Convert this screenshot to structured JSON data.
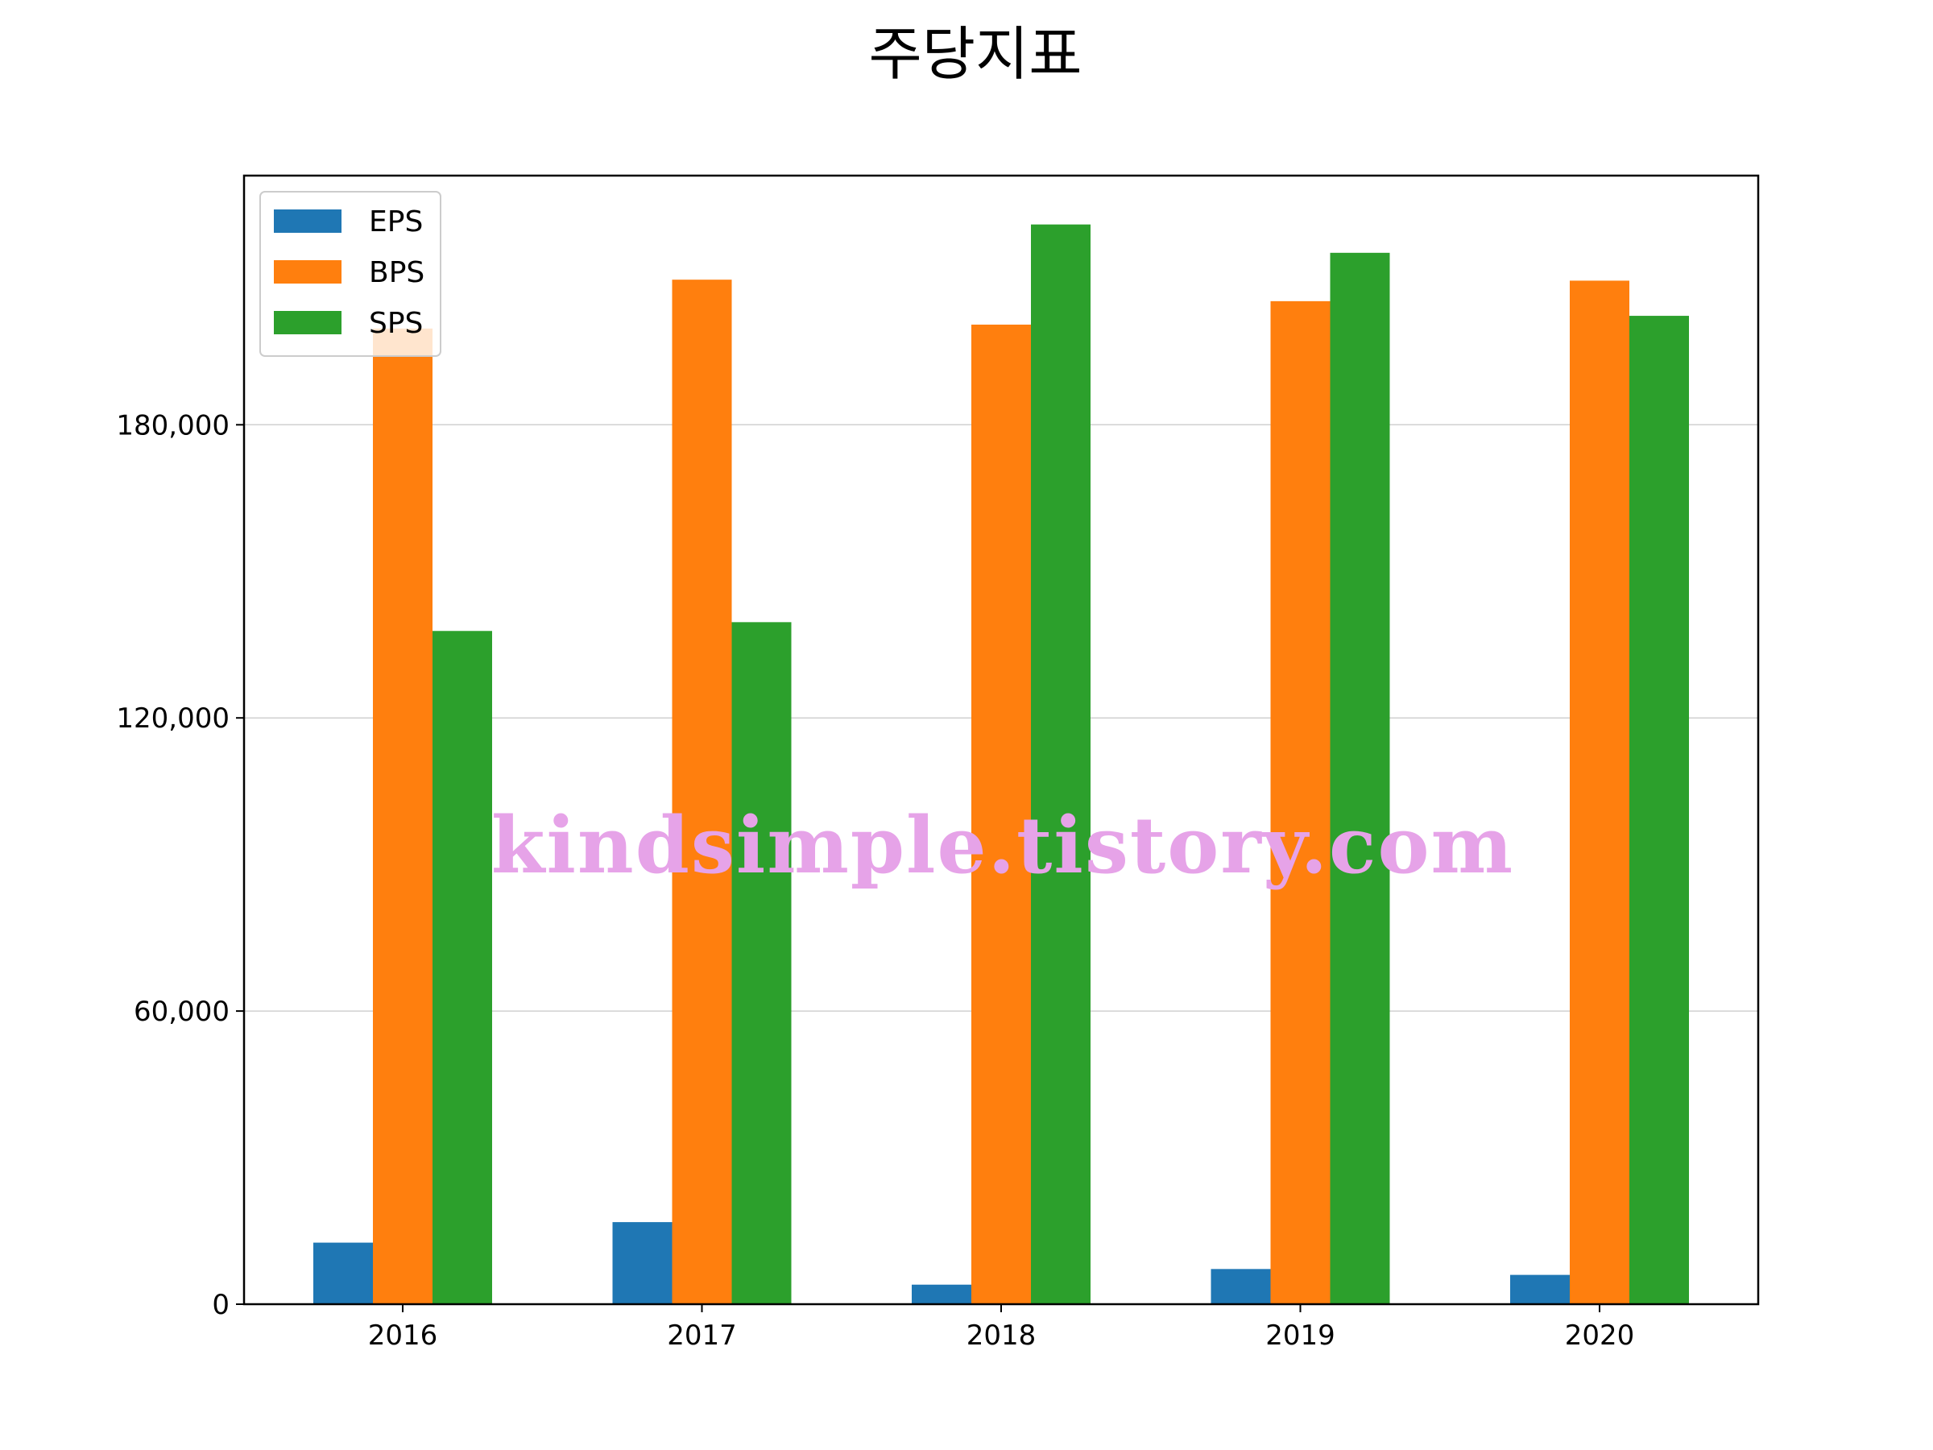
{
  "chart_data": {
    "type": "bar",
    "title": "주당지표",
    "categories": [
      "2016",
      "2017",
      "2018",
      "2019",
      "2020"
    ],
    "series": [
      {
        "name": "EPS",
        "color": "#1f77b4",
        "values": [
          12600,
          16800,
          4000,
          7200,
          6000
        ]
      },
      {
        "name": "BPS",
        "color": "#ff7f0e",
        "values": [
          199700,
          209700,
          200500,
          205300,
          209500
        ]
      },
      {
        "name": "SPS",
        "color": "#2ca02c",
        "values": [
          137800,
          139600,
          221000,
          215200,
          202300
        ]
      }
    ],
    "yticks": [
      0,
      60000,
      120000,
      180000
    ],
    "ytick_labels": [
      "0",
      "60,000",
      "120,000",
      "180,000"
    ],
    "ylim": [
      0,
      231000
    ],
    "xlabel": "",
    "ylabel": "",
    "grid": "y",
    "legend_position": "top-left"
  },
  "watermark": "kindsimple.tistory.com"
}
